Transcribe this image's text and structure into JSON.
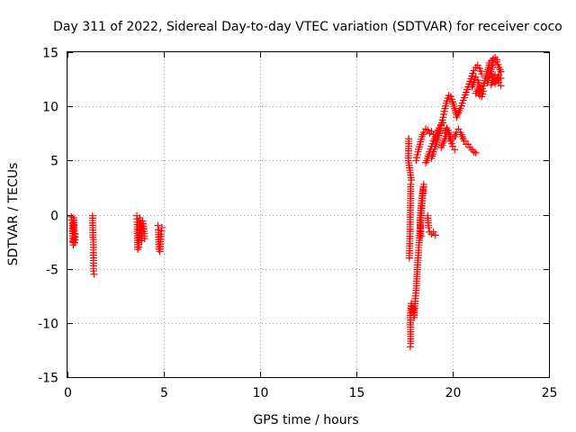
{
  "chart_data": {
    "type": "scatter",
    "title": "Day 311 of 2022, Sidereal Day-to-day VTEC variation (SDTVAR) for receiver coco",
    "xlabel": "GPS time / hours",
    "ylabel": "SDTVAR / TECUs",
    "xlim": [
      0,
      25
    ],
    "ylim": [
      -15,
      15
    ],
    "xticks": [
      0,
      5,
      10,
      15,
      20,
      25
    ],
    "yticks": [
      -15,
      -10,
      -5,
      0,
      5,
      10,
      15
    ],
    "xtick_labels": [
      "0",
      "5",
      "10",
      "15",
      "20",
      "25"
    ],
    "ytick_labels": [
      "-15",
      "-10",
      "-5",
      "0",
      "5",
      "10",
      "15"
    ],
    "grid": true,
    "marker": "plus",
    "series_color": "#ff0000",
    "segments": [
      [
        [
          0.2,
          -0.2
        ],
        [
          0.25,
          -0.8
        ],
        [
          0.25,
          -1.5
        ],
        [
          0.28,
          -2.2
        ],
        [
          0.3,
          -2.8
        ],
        [
          0.32,
          -0.3
        ],
        [
          0.35,
          -1.2
        ],
        [
          0.35,
          -2.0
        ],
        [
          0.38,
          -2.6
        ],
        [
          0.4,
          -1.8
        ]
      ],
      [
        [
          1.3,
          -0.1
        ],
        [
          1.32,
          -2.1
        ],
        [
          1.35,
          -2.3
        ],
        [
          1.35,
          -5.2
        ],
        [
          1.38,
          -5.5
        ]
      ],
      [
        [
          3.6,
          -0.1
        ],
        [
          3.62,
          -0.7
        ],
        [
          3.65,
          -3.2
        ],
        [
          3.7,
          -3.0
        ],
        [
          3.75,
          -0.3
        ],
        [
          3.8,
          -0.9
        ],
        [
          3.85,
          -2.4
        ],
        [
          3.9,
          -0.6
        ],
        [
          3.95,
          -1.1
        ],
        [
          4.0,
          -2.2
        ]
      ],
      [
        [
          4.7,
          -1.0
        ],
        [
          4.72,
          -1.4
        ],
        [
          4.75,
          -3.2
        ],
        [
          4.8,
          -3.4
        ],
        [
          4.85,
          -1.8
        ],
        [
          4.9,
          -1.2
        ]
      ],
      [
        [
          17.8,
          -12.2
        ],
        [
          17.82,
          -11.9
        ],
        [
          17.8,
          -9.3
        ],
        [
          17.85,
          -8.2
        ],
        [
          17.9,
          -9.0
        ],
        [
          17.95,
          -8.5
        ],
        [
          18.0,
          -9.5
        ],
        [
          18.05,
          -8.0
        ],
        [
          18.1,
          -7.0
        ],
        [
          18.15,
          -5.5
        ],
        [
          18.2,
          -4.0
        ],
        [
          18.25,
          -2.8
        ],
        [
          18.3,
          -1.5
        ],
        [
          18.35,
          -0.3
        ],
        [
          18.4,
          0.8
        ],
        [
          18.45,
          2.0
        ],
        [
          18.5,
          2.8
        ],
        [
          18.4,
          1.5
        ],
        [
          18.3,
          -0.5
        ],
        [
          18.35,
          -2.0
        ]
      ],
      [
        [
          17.75,
          -4.0
        ],
        [
          17.78,
          -2.0
        ],
        [
          17.8,
          0.2
        ],
        [
          17.82,
          2.8
        ],
        [
          17.85,
          3.2
        ],
        [
          17.7,
          5.0
        ],
        [
          17.72,
          7.0
        ]
      ],
      [
        [
          18.7,
          -0.1
        ],
        [
          18.75,
          -1.2
        ],
        [
          18.8,
          -1.6
        ],
        [
          18.9,
          -1.8
        ],
        [
          19.0,
          -1.6
        ],
        [
          19.1,
          -1.9
        ]
      ],
      [
        [
          18.1,
          5.0
        ],
        [
          18.2,
          5.8
        ],
        [
          18.3,
          6.5
        ],
        [
          18.4,
          7.2
        ],
        [
          18.5,
          7.6
        ],
        [
          18.6,
          7.9
        ],
        [
          18.7,
          7.8
        ],
        [
          18.8,
          7.5
        ],
        [
          18.9,
          7.7
        ],
        [
          19.0,
          7.4
        ]
      ],
      [
        [
          18.6,
          4.8
        ],
        [
          18.7,
          5.2
        ],
        [
          18.8,
          5.8
        ],
        [
          18.9,
          6.3
        ],
        [
          19.0,
          6.8
        ],
        [
          19.1,
          7.2
        ],
        [
          19.2,
          7.6
        ],
        [
          19.3,
          8.0
        ],
        [
          19.4,
          8.3
        ],
        [
          19.5,
          8.5
        ]
      ],
      [
        [
          18.9,
          5.2
        ],
        [
          19.0,
          5.8
        ],
        [
          19.1,
          6.3
        ],
        [
          19.2,
          6.9
        ],
        [
          19.3,
          7.5
        ],
        [
          19.4,
          8.2
        ],
        [
          19.5,
          9.0
        ],
        [
          19.6,
          9.8
        ],
        [
          19.7,
          10.5
        ],
        [
          19.8,
          11.0
        ],
        [
          19.9,
          10.9
        ],
        [
          20.0,
          10.4
        ],
        [
          20.1,
          9.8
        ],
        [
          20.2,
          9.2
        ]
      ],
      [
        [
          19.6,
          7.6
        ],
        [
          19.7,
          8.0
        ],
        [
          19.8,
          7.6
        ],
        [
          19.9,
          7.2
        ],
        [
          20.0,
          7.0
        ],
        [
          20.1,
          7.2
        ],
        [
          20.2,
          7.6
        ],
        [
          20.3,
          7.9
        ],
        [
          20.4,
          7.6
        ],
        [
          20.5,
          7.2
        ],
        [
          20.6,
          6.8
        ],
        [
          20.7,
          6.5
        ]
      ],
      [
        [
          19.4,
          6.2
        ],
        [
          19.5,
          6.6
        ],
        [
          19.6,
          7.0
        ],
        [
          19.7,
          7.5
        ],
        [
          19.8,
          7.2
        ],
        [
          19.9,
          6.8
        ],
        [
          20.0,
          6.3
        ],
        [
          20.1,
          6.0
        ]
      ],
      [
        [
          20.2,
          9.0
        ],
        [
          20.3,
          9.4
        ],
        [
          20.4,
          9.8
        ],
        [
          20.5,
          10.3
        ],
        [
          20.6,
          10.8
        ],
        [
          20.7,
          11.3
        ],
        [
          20.8,
          11.8
        ],
        [
          20.9,
          12.3
        ],
        [
          21.0,
          12.8
        ],
        [
          21.1,
          13.3
        ],
        [
          21.2,
          13.6
        ],
        [
          21.3,
          13.8
        ],
        [
          21.4,
          13.5
        ],
        [
          21.5,
          13.0
        ]
      ],
      [
        [
          20.8,
          6.5
        ],
        [
          20.9,
          6.2
        ],
        [
          21.0,
          6.0
        ],
        [
          21.1,
          5.8
        ],
        [
          21.2,
          5.7
        ]
      ],
      [
        [
          21.0,
          11.8
        ],
        [
          21.1,
          12.2
        ],
        [
          21.2,
          12.7
        ],
        [
          21.3,
          12.4
        ],
        [
          21.4,
          11.8
        ],
        [
          21.5,
          11.4
        ],
        [
          21.6,
          11.9
        ],
        [
          21.7,
          12.6
        ],
        [
          21.8,
          13.2
        ],
        [
          21.9,
          13.8
        ]
      ],
      [
        [
          21.2,
          11.2
        ],
        [
          21.3,
          11.6
        ],
        [
          21.4,
          11.0
        ],
        [
          21.5,
          10.9
        ],
        [
          21.6,
          11.4
        ]
      ],
      [
        [
          21.8,
          12.2
        ],
        [
          21.9,
          12.8
        ],
        [
          22.0,
          13.4
        ],
        [
          22.1,
          14.0
        ],
        [
          22.2,
          14.3
        ],
        [
          22.3,
          14.1
        ],
        [
          22.4,
          13.6
        ],
        [
          22.5,
          13.2
        ]
      ],
      [
        [
          21.9,
          14.0
        ],
        [
          22.0,
          14.2
        ],
        [
          22.1,
          14.4
        ],
        [
          22.2,
          14.5
        ],
        [
          22.3,
          14.3
        ]
      ],
      [
        [
          22.0,
          12.0
        ],
        [
          22.1,
          12.6
        ],
        [
          22.2,
          12.9
        ],
        [
          22.3,
          12.6
        ],
        [
          22.4,
          12.2
        ],
        [
          22.5,
          11.9
        ]
      ],
      [
        [
          22.0,
          13.0
        ],
        [
          22.1,
          12.4
        ],
        [
          22.2,
          12.1
        ],
        [
          22.3,
          12.5
        ],
        [
          22.4,
          12.9
        ],
        [
          22.5,
          12.6
        ]
      ]
    ]
  }
}
